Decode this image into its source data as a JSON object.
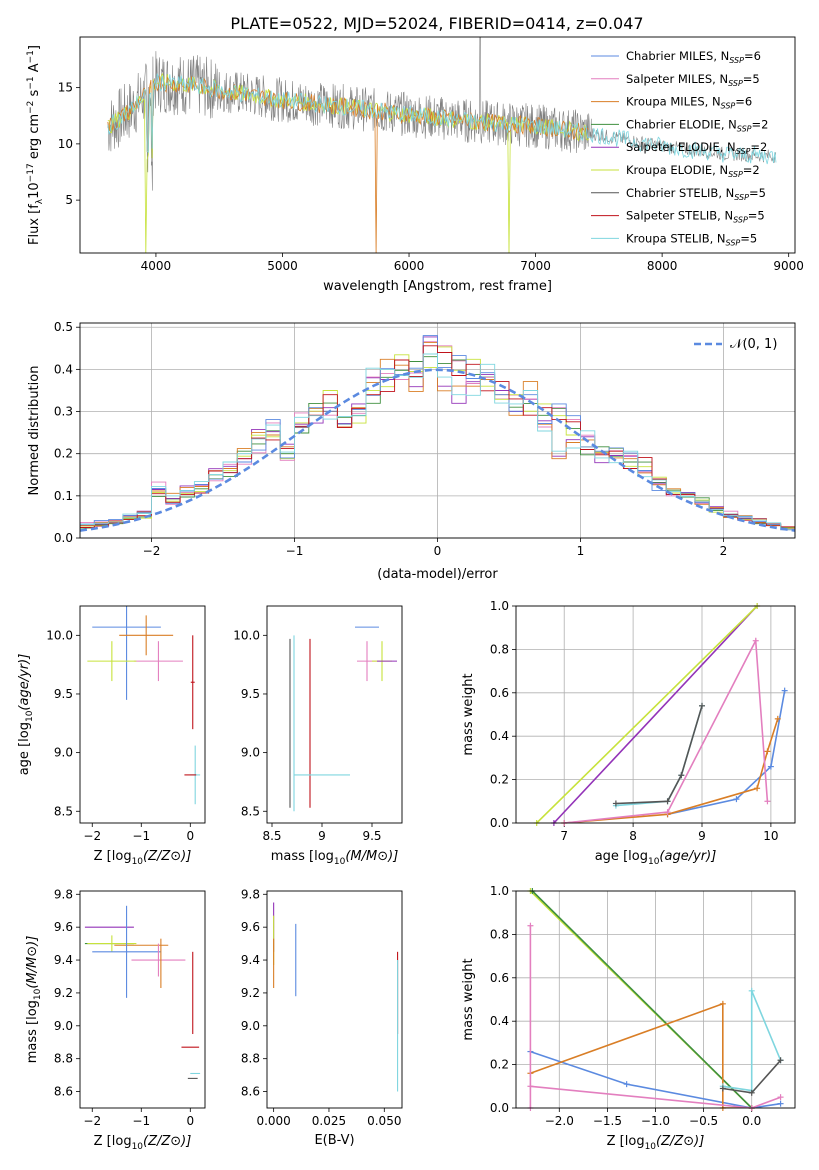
{
  "figure_title": "PLATE=0522, MJD=52024, FIBERID=0414, z=0.047",
  "colors": {
    "chabrier_miles": "#5b8ae0",
    "salpeter_miles": "#e37fbf",
    "kroupa_miles": "#d97e26",
    "chabrier_elodie": "#3f8f3f",
    "salpeter_elodie": "#9333b8",
    "kroupa_elodie": "#c7e23b",
    "chabrier_stelib": "#555555",
    "salpeter_stelib": "#c0131b",
    "kroupa_stelib": "#7fd6df",
    "gauss": "#5b8ae0",
    "data": "#808080"
  },
  "chart_data": [
    {
      "id": "spectrum",
      "type": "line",
      "title": "PLATE=0522, MJD=52024, FIBERID=0414, z=0.047",
      "xlabel": "wavelength [Angstrom, rest frame]",
      "ylabel_main": "Flux [f",
      "ylabel_sub": "λ",
      "ylabel_rest": "10",
      "ylabel_sup1": "−17",
      "ylabel_mid": " erg cm",
      "ylabel_sup2": "−2",
      "ylabel_mid2": " s",
      "ylabel_sup3": "−1",
      "ylabel_mid3": " A",
      "ylabel_sup4": "−1",
      "ylabel_end": "]",
      "xlim": [
        3400,
        9050
      ],
      "ylim": [
        0.3,
        19.5
      ],
      "xticks": [
        4000,
        5000,
        6000,
        7000,
        8000,
        9000
      ],
      "yticks": [
        5,
        10,
        15
      ],
      "legend_location": "upper right",
      "legend": [
        {
          "base": "Chabrier MILES, N",
          "sub": "SSP",
          "end": "=6"
        },
        {
          "base": "Salpeter MILES, N",
          "sub": "SSP",
          "end": "=5"
        },
        {
          "base": "Kroupa MILES, N",
          "sub": "SSP",
          "end": "=6"
        },
        {
          "base": "Chabrier ELODIE, N",
          "sub": "SSP",
          "end": "=2"
        },
        {
          "base": "Salpeter ELODIE, N",
          "sub": "SSP",
          "end": "=2"
        },
        {
          "base": "Kroupa ELODIE, N",
          "sub": "SSP",
          "end": "=2"
        },
        {
          "base": "Chabrier STELIB, N",
          "sub": "SSP",
          "end": "=5"
        },
        {
          "base": "Salpeter STELIB, N",
          "sub": "SSP",
          "end": "=5"
        },
        {
          "base": "Kroupa STELIB, N",
          "sub": "SSP",
          "end": "=5"
        }
      ],
      "continuum": [
        [
          3620,
          11.5
        ],
        [
          3800,
          13.0
        ],
        [
          4000,
          15.5
        ],
        [
          4300,
          15.2
        ],
        [
          4600,
          14.6
        ],
        [
          5000,
          13.9
        ],
        [
          5500,
          13.3
        ],
        [
          6000,
          12.6
        ],
        [
          6500,
          12.0
        ],
        [
          7000,
          11.6
        ],
        [
          7400,
          11.0
        ],
        [
          8000,
          9.8
        ],
        [
          8500,
          9.1
        ],
        [
          8900,
          8.9
        ]
      ]
    },
    {
      "id": "residuals",
      "type": "histogram",
      "xlabel": "(data-model)/error",
      "ylabel": "Normed distribution",
      "xlim": [
        -2.5,
        2.5
      ],
      "ylim": [
        0,
        0.51
      ],
      "xticks": [
        -2,
        -1,
        0,
        1,
        2
      ],
      "yticks": [
        0.0,
        0.1,
        0.2,
        0.3,
        0.4,
        0.5
      ],
      "grid": true,
      "legend_location": "upper right",
      "legend_label": "𝒩(0, 1)",
      "bins_start": -2.5,
      "bin_width": 0.1,
      "hist_a": [
        0.035,
        0.04,
        0.045,
        0.05,
        0.06,
        0.125,
        0.08,
        0.115,
        0.12,
        0.14,
        0.165,
        0.175,
        0.215,
        0.265,
        0.19,
        0.28,
        0.3,
        0.31,
        0.255,
        0.305,
        0.36,
        0.39,
        0.4,
        0.38,
        0.48,
        0.43,
        0.42,
        0.39,
        0.37,
        0.34,
        0.32,
        0.33,
        0.28,
        0.3,
        0.29,
        0.23,
        0.2,
        0.22,
        0.19,
        0.16,
        0.12,
        0.1,
        0.11,
        0.08,
        0.07,
        0.06,
        0.05,
        0.04,
        0.03,
        0.02
      ],
      "hist_b": [
        0.025,
        0.03,
        0.035,
        0.045,
        0.05,
        0.105,
        0.09,
        0.1,
        0.11,
        0.15,
        0.155,
        0.2,
        0.23,
        0.24,
        0.2,
        0.265,
        0.31,
        0.33,
        0.27,
        0.29,
        0.34,
        0.37,
        0.41,
        0.395,
        0.43,
        0.44,
        0.41,
        0.4,
        0.36,
        0.35,
        0.33,
        0.31,
        0.3,
        0.29,
        0.26,
        0.21,
        0.21,
        0.2,
        0.17,
        0.18,
        0.14,
        0.11,
        0.1,
        0.09,
        0.065,
        0.055,
        0.045,
        0.035,
        0.03,
        0.025
      ],
      "hist_c": [
        0.03,
        0.035,
        0.04,
        0.055,
        0.06,
        0.115,
        0.1,
        0.12,
        0.13,
        0.155,
        0.17,
        0.2,
        0.25,
        0.26,
        0.21,
        0.27,
        0.29,
        0.3,
        0.28,
        0.3,
        0.38,
        0.4,
        0.41,
        0.37,
        0.45,
        0.36,
        0.34,
        0.36,
        0.4,
        0.33,
        0.3,
        0.35,
        0.27,
        0.2,
        0.22,
        0.24,
        0.19,
        0.19,
        0.2,
        0.15,
        0.13,
        0.11,
        0.105,
        0.085,
        0.07,
        0.05,
        0.05,
        0.045,
        0.035,
        0.02
      ]
    },
    {
      "id": "age_vs_Z",
      "type": "scatter",
      "xlabel": "Z [log",
      "ylabel": "age  [log",
      "xlim": [
        -2.25,
        0.3
      ],
      "ylim": [
        8.4,
        10.25
      ],
      "xticks": [
        -2,
        -1,
        0
      ],
      "yticks": [
        8.5,
        9.0,
        9.5,
        10.0
      ],
      "points": [
        {
          "c": "chabrier_miles",
          "x": -1.3,
          "y": 10.07,
          "ex": 0.7,
          "ey": 0.62
        },
        {
          "c": "kroupa_miles",
          "x": -0.9,
          "y": 10.0,
          "ex": 0.55,
          "ey": 0.17
        },
        {
          "c": "salpeter_miles",
          "x": -0.65,
          "y": 9.78,
          "ex": 0.5,
          "ey": 0.17
        },
        {
          "c": "kroupa_elodie",
          "x": -1.6,
          "y": 9.78,
          "ex": 0.5,
          "ey": 0.17
        },
        {
          "c": "salpeter_stelib",
          "x": 0.05,
          "y": 9.6,
          "ex": 0.04,
          "ey": 0.4
        },
        {
          "c": "kroupa_stelib",
          "x": 0.1,
          "y": 8.81,
          "ex": 0.1,
          "ey": 0.25
        },
        {
          "c": "salpeter_stelib",
          "x": 0.0,
          "y": 8.81,
          "ex": 0.12,
          "ey": 0.0
        }
      ]
    },
    {
      "id": "age_vs_mass",
      "type": "scatter",
      "xlabel": "mass [log",
      "ylabel": "",
      "xlim": [
        8.45,
        9.8
      ],
      "ylim": [
        8.4,
        10.25
      ],
      "xticks": [
        8.5,
        9.0,
        9.5
      ],
      "yticks": [
        8.5,
        9.0,
        9.5,
        10.0
      ],
      "points": [
        {
          "c": "chabrier_miles",
          "x": 9.45,
          "y": 10.07,
          "ex": 0.12,
          "ey": 0.0
        },
        {
          "c": "salpeter_miles",
          "x": 9.45,
          "y": 9.78,
          "ex": 0.1,
          "ey": 0.17
        },
        {
          "c": "kroupa_elodie",
          "x": 9.6,
          "y": 9.78,
          "ex": 0.1,
          "ey": 0.17
        },
        {
          "c": "salpeter_elodie",
          "x": 9.65,
          "y": 9.78,
          "ex": 0.1,
          "ey": 0.0
        },
        {
          "c": "chabrier_stelib",
          "x": 8.68,
          "y": 9.25,
          "ex": 0.0,
          "ey": 0.72
        },
        {
          "c": "salpeter_stelib",
          "x": 8.88,
          "y": 9.25,
          "ex": 0.0,
          "ey": 0.72
        },
        {
          "c": "kroupa_stelib",
          "x": 9.0,
          "y": 8.81,
          "ex": 0.28,
          "ey": 0.0
        },
        {
          "c": "kroupa_stelib",
          "x": 8.72,
          "y": 9.25,
          "ex": 0.0,
          "ey": 0.75
        }
      ]
    },
    {
      "id": "massweight_vs_age",
      "type": "line",
      "xlabel": "age  [log",
      "ylabel": "mass weight",
      "xlim": [
        6.3,
        10.35
      ],
      "ylim": [
        0,
        1.0
      ],
      "xticks": [
        7,
        8,
        9,
        10
      ],
      "yticks": [
        0.0,
        0.2,
        0.4,
        0.6,
        0.8,
        1.0
      ],
      "grid": true,
      "series": [
        {
          "c": "salpeter_elodie",
          "x": [
            6.85,
            9.8
          ],
          "y": [
            0.0,
            1.0
          ]
        },
        {
          "c": "kroupa_elodie",
          "x": [
            6.6,
            9.8
          ],
          "y": [
            0.0,
            1.0
          ]
        },
        {
          "c": "chabrier_miles",
          "x": [
            8.5,
            9.5,
            10.0,
            10.2
          ],
          "y": [
            0.04,
            0.11,
            0.26,
            0.61
          ]
        },
        {
          "c": "kroupa_miles",
          "x": [
            7.0,
            8.5,
            9.8,
            9.95,
            10.1
          ],
          "y": [
            0.0,
            0.04,
            0.16,
            0.33,
            0.48
          ]
        },
        {
          "c": "salpeter_miles",
          "x": [
            7.0,
            8.5,
            9.78,
            9.95
          ],
          "y": [
            0.0,
            0.05,
            0.84,
            0.1
          ]
        },
        {
          "c": "kroupa_stelib",
          "x": [
            7.75,
            8.5,
            8.7,
            9.0
          ],
          "y": [
            0.08,
            0.1,
            0.22,
            0.54
          ]
        },
        {
          "c": "chabrier_stelib",
          "x": [
            7.75,
            8.5,
            8.7,
            9.0
          ],
          "y": [
            0.09,
            0.1,
            0.22,
            0.54
          ]
        }
      ]
    },
    {
      "id": "mass_vs_Z",
      "type": "scatter",
      "xlabel": "Z [log",
      "ylabel": "mass [log",
      "xlim": [
        -2.25,
        0.3
      ],
      "ylim": [
        8.5,
        9.82
      ],
      "xticks": [
        -2,
        -1,
        0
      ],
      "yticks": [
        8.6,
        8.8,
        9.0,
        9.2,
        9.4,
        9.6,
        9.8
      ],
      "points": [
        {
          "c": "salpeter_elodie",
          "x": -1.65,
          "y": 9.6,
          "ex": 0.5,
          "ey": 0.0
        },
        {
          "c": "chabrier_elodie",
          "x": -1.65,
          "y": 9.5,
          "ex": 0.5,
          "ey": 0.0
        },
        {
          "c": "kroupa_miles",
          "x": -1.0,
          "y": 9.49,
          "ex": 0.55,
          "ey": 0.0
        },
        {
          "c": "kroupa_elodie",
          "x": -1.6,
          "y": 9.5,
          "ex": 0.5,
          "ey": 0.05
        },
        {
          "c": "chabrier_miles",
          "x": -1.3,
          "y": 9.45,
          "ex": 0.7,
          "ey": 0.28
        },
        {
          "c": "salpeter_miles",
          "x": -0.65,
          "y": 9.4,
          "ex": 0.55,
          "ey": 0.1
        },
        {
          "c": "kroupa_miles",
          "x": -0.6,
          "y": 9.38,
          "ex": 0.0,
          "ey": 0.15
        },
        {
          "c": "salpeter_stelib",
          "x": 0.0,
          "y": 8.87,
          "ex": 0.18,
          "ey": 0.0
        },
        {
          "c": "chabrier_stelib",
          "x": 0.05,
          "y": 8.68,
          "ex": 0.1,
          "ey": 0.0
        },
        {
          "c": "kroupa_stelib",
          "x": 0.1,
          "y": 8.71,
          "ex": 0.1,
          "ey": 0.0
        },
        {
          "c": "salpeter_stelib",
          "x": 0.05,
          "y": 9.2,
          "ex": 0.0,
          "ey": 0.25
        }
      ]
    },
    {
      "id": "mass_vs_ebv",
      "type": "scatter",
      "xlabel": "E(B-V)",
      "ylabel": "",
      "xlim": [
        -0.003,
        0.058
      ],
      "ylim": [
        8.5,
        9.82
      ],
      "xticks": [
        0.0,
        0.025,
        0.05
      ],
      "tick_labels": [
        "0.000",
        "0.025",
        "0.050"
      ],
      "yticks": [
        8.6,
        8.8,
        9.0,
        9.2,
        9.4,
        9.6,
        9.8
      ],
      "points": [
        {
          "c": "salpeter_elodie",
          "x": 0.0,
          "y": 9.6,
          "ex": 0.0,
          "ey": 0.15
        },
        {
          "c": "kroupa_elodie",
          "x": 0.0,
          "y": 9.52,
          "ex": 0.0,
          "ey": 0.15
        },
        {
          "c": "kroupa_miles",
          "x": 0.0,
          "y": 9.38,
          "ex": 0.0,
          "ey": 0.15
        },
        {
          "c": "chabrier_miles",
          "x": 0.01,
          "y": 9.4,
          "ex": 0.0,
          "ey": 0.22
        },
        {
          "c": "salpeter_stelib",
          "x": 0.056,
          "y": 9.2,
          "ex": 0.0,
          "ey": 0.25
        },
        {
          "c": "kroupa_stelib",
          "x": 0.056,
          "y": 9.0,
          "ex": 0.0,
          "ey": 0.4
        }
      ]
    },
    {
      "id": "massweight_vs_Z",
      "type": "line",
      "xlabel": "Z [log",
      "ylabel": "mass weight",
      "xlim": [
        -2.45,
        0.45
      ],
      "ylim": [
        0,
        1.0
      ],
      "xticks": [
        -2.0,
        -1.5,
        -1.0,
        -0.5,
        0.0
      ],
      "tick_labels": [
        "−2.0",
        "−1.5",
        "−1.0",
        "−0.5",
        "0.0"
      ],
      "yticks": [
        0.0,
        0.2,
        0.4,
        0.6,
        0.8,
        1.0
      ],
      "grid": true,
      "series": [
        {
          "c": "kroupa_elodie",
          "x": [
            -2.3,
            0.0
          ],
          "y": [
            1.0,
            0.0
          ]
        },
        {
          "c": "chabrier_elodie",
          "x": [
            -2.28,
            0.0
          ],
          "y": [
            1.0,
            0.0
          ]
        },
        {
          "c": "chabrier_miles",
          "x": [
            -2.3,
            -1.3,
            0.0,
            0.3
          ],
          "y": [
            0.26,
            0.11,
            0.0,
            0.02
          ]
        },
        {
          "c": "kroupa_miles",
          "x": [
            -2.3,
            -0.3,
            -0.3,
            0.0
          ],
          "y": [
            0.16,
            0.48,
            0.0,
            0.0
          ]
        },
        {
          "c": "salpeter_miles",
          "x": [
            -2.3,
            0.0,
            0.3
          ],
          "y": [
            0.1,
            0.0,
            0.05
          ]
        },
        {
          "c": "salpeter_miles",
          "x": [
            -2.3,
            -2.3
          ],
          "y": [
            0.84,
            0.0
          ]
        },
        {
          "c": "kroupa_stelib",
          "x": [
            -0.3,
            0.0,
            0.0,
            0.3
          ],
          "y": [
            0.1,
            0.08,
            0.54,
            0.22
          ]
        },
        {
          "c": "chabrier_stelib",
          "x": [
            -0.3,
            0.0,
            0.3
          ],
          "y": [
            0.09,
            0.07,
            0.22
          ]
        }
      ]
    }
  ]
}
